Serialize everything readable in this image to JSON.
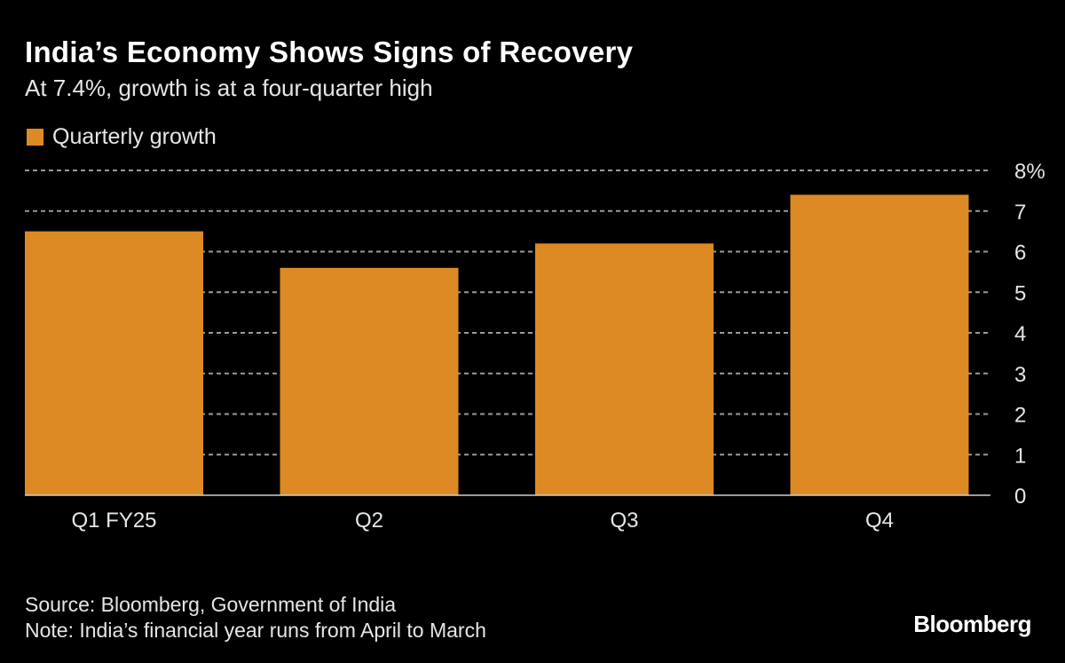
{
  "chart_data": {
    "type": "bar",
    "title": "India’s Economy Shows Signs of Recovery",
    "subtitle": "At 7.4%, growth is at a four-quarter high",
    "categories": [
      "Q1 FY25",
      "Q2",
      "Q3",
      "Q4"
    ],
    "series": [
      {
        "name": "Quarterly growth",
        "values": [
          6.5,
          5.6,
          6.2,
          7.4
        ],
        "color": "#dd8a24"
      }
    ],
    "ylim": [
      0,
      8
    ],
    "yticks": [
      "0",
      "1",
      "2",
      "3",
      "4",
      "5",
      "6",
      "7",
      "8%"
    ],
    "grid": true,
    "legend": "top-left",
    "yaxis_position": "right"
  },
  "footer": {
    "source": "Source: Bloomberg, Government of India",
    "note": "Note: India’s financial year runs from April to March",
    "logo": "Bloomberg"
  }
}
